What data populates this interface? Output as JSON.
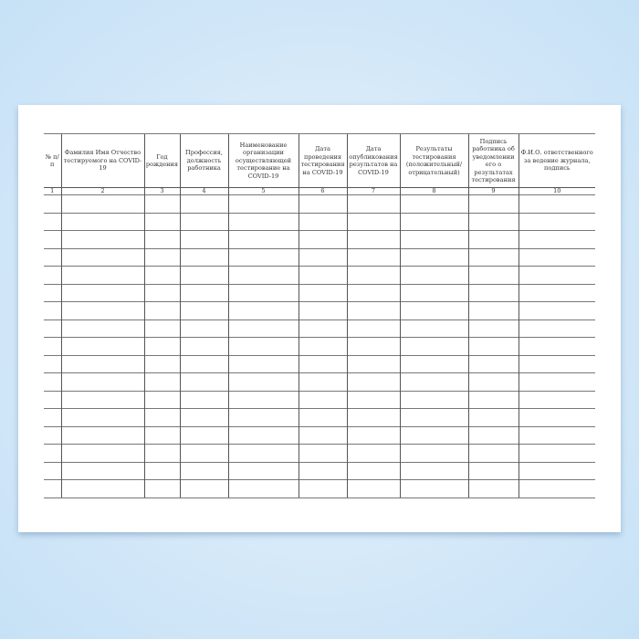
{
  "headers": [
    "№ п/п",
    "Фамилия Имя Отчество тестируемого на COVID-19",
    "Год рождения",
    "Профессия, должность работника",
    "Наименование организации осуществляющей тестирование на COVID-19",
    "Дата проведения тестирования на COVID-19",
    "Дата опубликования результатов на COVID-19",
    "Результаты тестирования (положительный/ отрицательный)",
    "Подпись работника об уведомлении его о результатах тестирования",
    "Ф.И.О. ответственного за ведение журнала, подпись"
  ],
  "column_numbers": [
    "1",
    "2",
    "3",
    "4",
    "5",
    "6",
    "7",
    "8",
    "9",
    "10"
  ],
  "empty_rows": 17
}
